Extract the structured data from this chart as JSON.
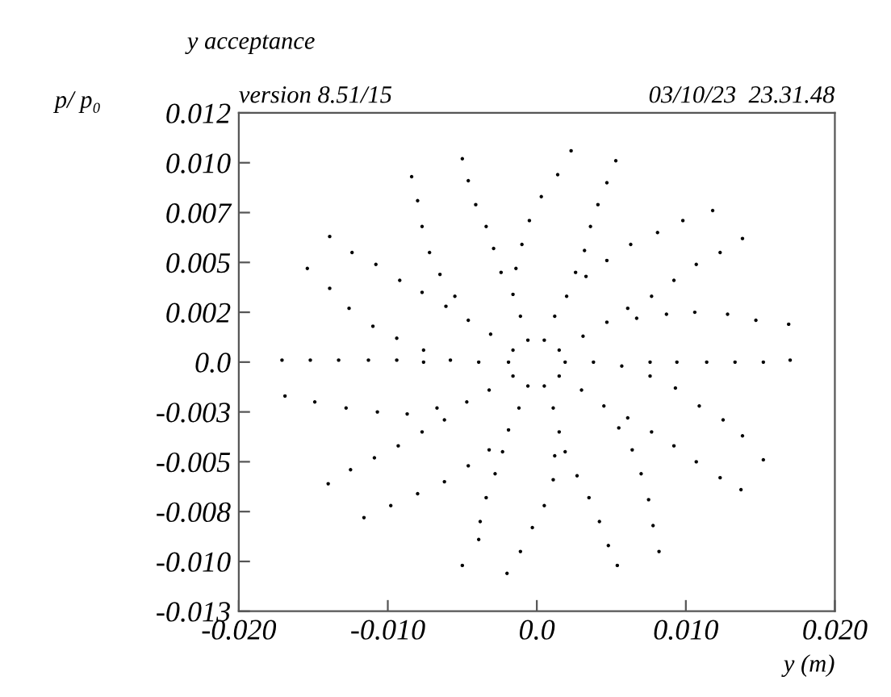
{
  "chart_data": {
    "type": "scatter",
    "title": "y acceptance",
    "xlabel": "y (m)",
    "ylabel": "p/ p₀",
    "annotations": [
      "version 8.51/15",
      "03/10/23  23.31.48"
    ],
    "xlim": [
      -0.02,
      0.02
    ],
    "ylim": [
      -0.0125,
      0.0125
    ],
    "xticks": [
      {
        "value": -0.02,
        "label": "-0.020"
      },
      {
        "value": -0.01,
        "label": "-0.010"
      },
      {
        "value": 0,
        "label": "0.0"
      },
      {
        "value": 0.01,
        "label": "0.010"
      },
      {
        "value": 0.02,
        "label": "0.020"
      }
    ],
    "yticks": [
      {
        "value": 0.0125,
        "label": "0.012"
      },
      {
        "value": 0.01,
        "label": "0.010"
      },
      {
        "value": 0.0075,
        "label": "0.007"
      },
      {
        "value": 0.005,
        "label": "0.005"
      },
      {
        "value": 0.0025,
        "label": "0.002"
      },
      {
        "value": 0,
        "label": "0.0"
      },
      {
        "value": -0.0025,
        "label": "-0.003"
      },
      {
        "value": -0.005,
        "label": "-0.005"
      },
      {
        "value": -0.0075,
        "label": "-0.008"
      },
      {
        "value": -0.01,
        "label": "-0.010"
      },
      {
        "value": -0.0125,
        "label": "-0.013"
      }
    ],
    "grid": false,
    "marker": "circle",
    "series": [
      {
        "color": "#000000",
        "x": [
          -0.0154,
          -0.0171,
          -0.0139,
          -0.0152,
          -0.0126,
          -0.0133,
          -0.011,
          -0.0113,
          -0.0094,
          -0.0094,
          -0.0076,
          -0.0076,
          -0.0058,
          -0.0039,
          -0.0019,
          -0.0169,
          -0.014,
          -0.0149,
          -0.0125,
          -0.0128,
          -0.0109,
          -0.0107,
          -0.0093,
          -0.0087,
          -0.0077,
          -0.0067,
          -0.0062,
          -0.0047,
          -0.0032,
          -0.0016,
          -0.0116,
          -0.005,
          -0.0098,
          -0.0039,
          -0.008,
          -0.0038,
          -0.0062,
          -0.0034,
          -0.0046,
          -0.0028,
          -0.0032,
          -0.0023,
          -0.0019,
          -0.0012,
          -0.0006,
          -0.002,
          0.0054,
          -0.0011,
          0.0048,
          -0.0003,
          0.0042,
          0.0005,
          0.0035,
          0.0011,
          0.0027,
          0.0012,
          0.0019,
          0.0015,
          0.0011,
          0.0005,
          0.0082,
          0.0137,
          0.0078,
          0.0123,
          0.0075,
          0.0107,
          0.007,
          0.0092,
          0.0064,
          0.0077,
          0.0055,
          0.0061,
          0.0045,
          0.003,
          0.0015,
          0.017,
          0.0152,
          0.0152,
          0.0138,
          0.0133,
          0.0125,
          0.0114,
          0.0109,
          0.0094,
          0.0093,
          0.0076,
          0.0076,
          0.0057,
          0.0038,
          0.0019,
          0.0138,
          0.0169,
          0.0123,
          0.0147,
          0.0107,
          0.0128,
          0.0092,
          0.0106,
          0.0077,
          0.0087,
          0.0061,
          0.0067,
          0.0047,
          0.0031,
          0.0015,
          0.0053,
          0.0118,
          0.0047,
          0.0098,
          0.0041,
          0.0081,
          0.0036,
          0.0063,
          0.0032,
          0.0047,
          0.0026,
          0.0033,
          0.002,
          0.0012,
          0.0005,
          -0.005,
          0.0023,
          -0.0046,
          0.0014,
          -0.0041,
          0.0003,
          -0.0034,
          -0.0005,
          -0.0029,
          -0.001,
          -0.0024,
          -0.0014,
          -0.0016,
          -0.0011,
          -0.0006,
          -0.0139,
          -0.0084,
          -0.0124,
          -0.008,
          -0.0108,
          -0.0077,
          -0.0092,
          -0.0072,
          -0.0077,
          -0.0065,
          -0.0061,
          -0.0055,
          -0.0046,
          -0.0031,
          -0.0016
        ],
        "values": [
          0.0047,
          0.0001,
          0.0037,
          0.0001,
          0.0027,
          0.0001,
          0.0018,
          0.0001,
          0.0012,
          0.0001,
          0.0006,
          0.0,
          0.0001,
          0.0,
          0.0,
          -0.0017,
          -0.0061,
          -0.002,
          -0.0054,
          -0.0023,
          -0.0048,
          -0.0025,
          -0.0042,
          -0.0026,
          -0.0035,
          -0.0023,
          -0.0029,
          -0.002,
          -0.0014,
          -0.0007,
          -0.0078,
          -0.0102,
          -0.0072,
          -0.0089,
          -0.0066,
          -0.008,
          -0.006,
          -0.0068,
          -0.0052,
          -0.0056,
          -0.0044,
          -0.0045,
          -0.0034,
          -0.0023,
          -0.0012,
          -0.0106,
          -0.0102,
          -0.0095,
          -0.0092,
          -0.0083,
          -0.008,
          -0.0072,
          -0.0068,
          -0.0059,
          -0.0057,
          -0.0047,
          -0.0045,
          -0.0035,
          -0.0023,
          -0.0012,
          -0.0095,
          -0.0064,
          -0.0082,
          -0.0058,
          -0.0069,
          -0.005,
          -0.0056,
          -0.0042,
          -0.0044,
          -0.0035,
          -0.0033,
          -0.0028,
          -0.0022,
          -0.0014,
          -0.0007,
          0.0001,
          -0.0049,
          0.0,
          -0.0037,
          0.0,
          -0.0029,
          0.0,
          -0.0022,
          0.0,
          -0.0013,
          0.0,
          -0.0007,
          -0.0002,
          0.0,
          0.0,
          0.0062,
          0.0019,
          0.0055,
          0.0021,
          0.0049,
          0.0024,
          0.0041,
          0.0025,
          0.0033,
          0.0024,
          0.0027,
          0.0022,
          0.002,
          0.0013,
          0.0006,
          0.0101,
          0.0076,
          0.009,
          0.0071,
          0.0079,
          0.0065,
          0.0068,
          0.0059,
          0.0056,
          0.0051,
          0.0045,
          0.0043,
          0.0033,
          0.0023,
          0.0011,
          0.0102,
          0.0106,
          0.0091,
          0.0094,
          0.0079,
          0.0083,
          0.0068,
          0.0071,
          0.0057,
          0.0059,
          0.0045,
          0.0047,
          0.0034,
          0.0023,
          0.0011,
          0.0063,
          0.0093,
          0.0055,
          0.0081,
          0.0049,
          0.0068,
          0.0041,
          0.0055,
          0.0035,
          0.0044,
          0.0028,
          0.0033,
          0.0021,
          0.0014,
          0.0006
        ]
      }
    ]
  }
}
